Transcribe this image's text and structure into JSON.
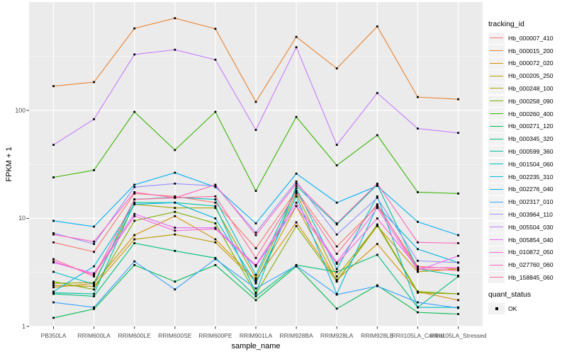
{
  "figure": {
    "panel_background": "#EBEBEB",
    "gridline_color": "#FFFFFF",
    "axis_text_color": "#4D4D4D",
    "point_color": "#000000"
  },
  "legend": {
    "tracking_title": "tracking_id",
    "quant_title": "quant_status",
    "quant_items": [
      "OK"
    ]
  },
  "chart_data": {
    "type": "line",
    "title": "",
    "xlabel": "sample_name",
    "ylabel": "FPKM + 1",
    "y_scale": "log10",
    "ylim": [
      1,
      1000
    ],
    "y_ticks": [
      1,
      10,
      100
    ],
    "y_minor_ticks": [
      3.162,
      31.62,
      316.2
    ],
    "grid": true,
    "legend_position": "right",
    "point_marker": "black-square",
    "categories": [
      "PB350LA",
      "RRIM600LA",
      "RRIM600LE",
      "RRIM600SE",
      "RRIM600PE",
      "RRIM901LA",
      "RRIM928BA",
      "RRIM928LA",
      "RRIM928LE",
      "RRII105LA_Control",
      "RRII105LA_Stressed"
    ],
    "series": [
      {
        "name": "Hb_000007_410",
        "color": "#F8766D",
        "values": [
          6.0,
          4.9,
          17,
          16,
          14,
          5.3,
          18,
          5.5,
          13,
          3.6,
          3.4
        ]
      },
      {
        "name": "Hb_000015_200",
        "color": "#EA8331",
        "values": [
          168,
          183,
          575,
          715,
          570,
          120,
          480,
          245,
          600,
          133,
          127
        ]
      },
      {
        "name": "Hb_000072_020",
        "color": "#D89000",
        "values": [
          2.3,
          2.5,
          7.0,
          10.5,
          6.4,
          2.7,
          9.2,
          2.7,
          5.8,
          2.1,
          1.75
        ]
      },
      {
        "name": "Hb_000205_250",
        "color": "#C09B00",
        "values": [
          2.4,
          2.35,
          6.4,
          7.1,
          6.0,
          2.6,
          13,
          2.65,
          8.5,
          3.2,
          3.4
        ]
      },
      {
        "name": "Hb_000248_100",
        "color": "#A3A500",
        "values": [
          2.5,
          2.55,
          13.5,
          12.5,
          12.5,
          2.8,
          17,
          2.9,
          8.6,
          2.05,
          2.0
        ]
      },
      {
        "name": "Hb_000258_090",
        "color": "#7CAE00",
        "values": [
          2.6,
          2.2,
          9.5,
          11.5,
          9.0,
          2.0,
          8.5,
          2.6,
          8.8,
          2.1,
          2.0
        ]
      },
      {
        "name": "Hb_000260_400",
        "color": "#39B600",
        "values": [
          24,
          28,
          97,
          43,
          97,
          18,
          87,
          31,
          59,
          17.5,
          17
        ]
      },
      {
        "name": "Hb_000271_120",
        "color": "#00BB4E",
        "values": [
          1.2,
          1.45,
          3.7,
          2.6,
          3.7,
          1.75,
          3.6,
          1.46,
          2.4,
          1.35,
          1.3
        ]
      },
      {
        "name": "Hb_000345_320",
        "color": "#00BF7D",
        "values": [
          2.0,
          1.9,
          5.9,
          5.0,
          4.3,
          1.9,
          3.7,
          3.2,
          4.6,
          1.5,
          2.9
        ]
      },
      {
        "name": "Hb_000599_360",
        "color": "#00C1A3",
        "values": [
          2.05,
          2.0,
          14,
          14,
          13,
          2.05,
          20,
          8.8,
          20.5,
          3.4,
          2.95
        ]
      },
      {
        "name": "Hb_001504_060",
        "color": "#00BFC4",
        "values": [
          3.2,
          2.45,
          15,
          15.7,
          15,
          3.0,
          19,
          3.4,
          16,
          1.5,
          1.5
        ]
      },
      {
        "name": "Hb_002235_310",
        "color": "#00BAE0",
        "values": [
          2.1,
          3.6,
          13.5,
          14,
          10,
          2.5,
          16,
          2.0,
          13,
          5.2,
          3.9
        ]
      },
      {
        "name": "Hb_002276_040",
        "color": "#00B0F6",
        "values": [
          9.5,
          8.4,
          20.5,
          26.5,
          19.5,
          9.0,
          26,
          14,
          20,
          9.3,
          7.0
        ]
      },
      {
        "name": "Hb_002317_010",
        "color": "#35A2FF",
        "values": [
          1.67,
          1.5,
          4.0,
          2.2,
          4.2,
          2.25,
          3.65,
          1.97,
          2.36,
          1.67,
          1.48
        ]
      },
      {
        "name": "Hb_003964_110",
        "color": "#9590FF",
        "values": [
          7.3,
          5.8,
          19.5,
          21,
          20,
          7.4,
          22,
          7.1,
          15.5,
          4.05,
          3.9
        ]
      },
      {
        "name": "Hb_005504_030",
        "color": "#C77CFF",
        "values": [
          48,
          83,
          330,
          365,
          295,
          66,
          385,
          48,
          145,
          68,
          62
        ]
      },
      {
        "name": "Hb_005854_040",
        "color": "#E76BF3",
        "values": [
          3.9,
          3.1,
          11,
          8.2,
          8.2,
          3.7,
          14,
          3.9,
          12.5,
          3.3,
          4.5
        ]
      },
      {
        "name": "Hb_010872_050",
        "color": "#FA62DB",
        "values": [
          4.0,
          3.0,
          10.5,
          7.7,
          8.0,
          3.6,
          13,
          3.8,
          10,
          3.5,
          3.5
        ]
      },
      {
        "name": "Hb_027760_060",
        "color": "#FF62BC",
        "values": [
          7.1,
          6.1,
          17.5,
          15.5,
          20.5,
          7.0,
          21,
          9.0,
          21,
          6.0,
          5.9
        ]
      },
      {
        "name": "Hb_158845_060",
        "color": "#FF6A98",
        "values": [
          4.2,
          2.9,
          15,
          15.5,
          16,
          4.3,
          17.5,
          4.7,
          13.5,
          3.4,
          3.3
        ]
      }
    ]
  }
}
